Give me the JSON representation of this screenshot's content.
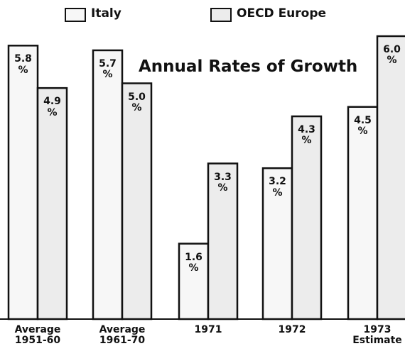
{
  "chart_data": {
    "type": "bar",
    "title": "Annual Rates of Growth",
    "categories": [
      "Average 1951-60",
      "Average 1961-70",
      "1971",
      "1972",
      "1973 Estimate"
    ],
    "series": [
      {
        "name": "Italy",
        "color": "#f7f7f7",
        "values": [
          5.8,
          5.7,
          1.6,
          3.2,
          4.5
        ],
        "value_labels": [
          "5.8 %",
          "5.7 %",
          "1.6 %",
          "3.2 %",
          "4.5 %"
        ]
      },
      {
        "name": "OECD Europe",
        "color": "#ececec",
        "values": [
          4.9,
          5.0,
          3.3,
          4.3,
          6.0
        ],
        "value_labels": [
          "4.9 %",
          "5.0 %",
          "3.3 %",
          "4.3 %",
          "6.0 %"
        ]
      }
    ]
  }
}
